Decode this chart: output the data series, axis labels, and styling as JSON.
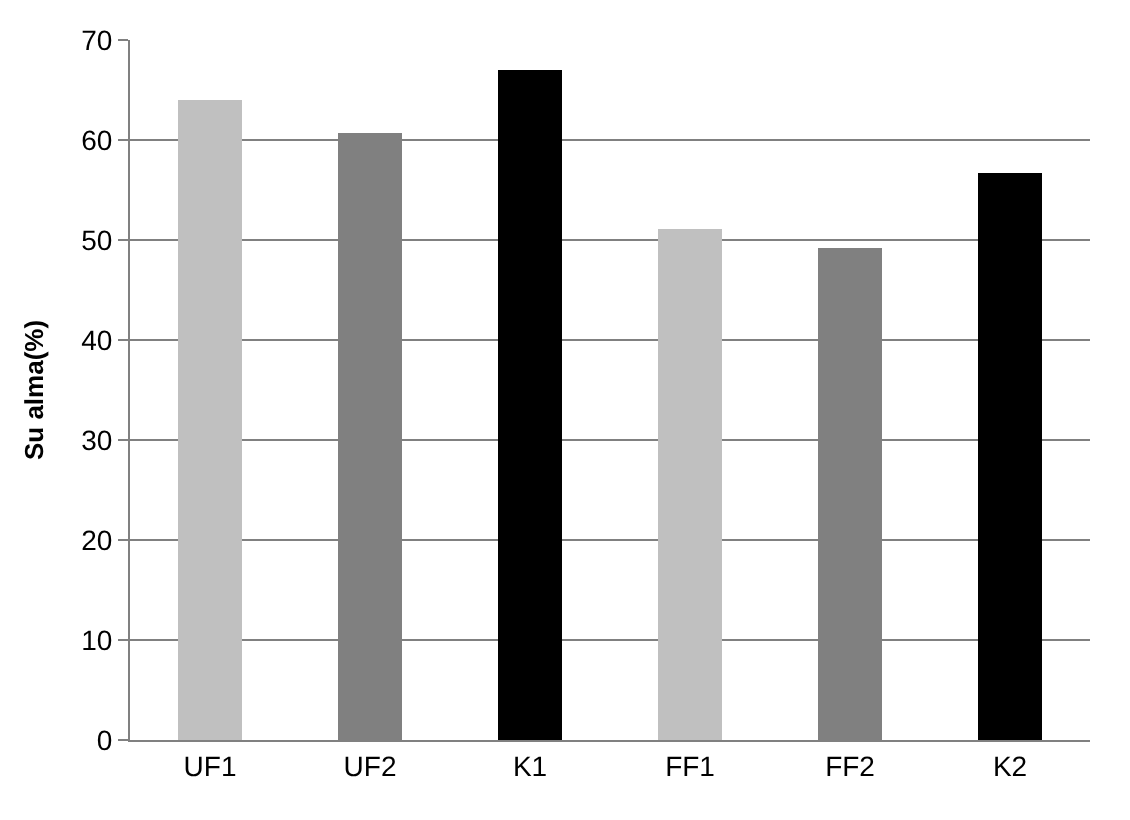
{
  "chart_data": {
    "type": "bar",
    "ylabel": "Su alma(%)",
    "categories": [
      "UF1",
      "UF2",
      "K1",
      "FF1",
      "FF2",
      "K2"
    ],
    "values": [
      64,
      60.7,
      67,
      51.1,
      49.2,
      56.7
    ],
    "colors": [
      "#c0c0c0",
      "#808080",
      "#000000",
      "#c0c0c0",
      "#808080",
      "#000000"
    ],
    "ylim": [
      0,
      70
    ],
    "yticks": [
      0,
      10,
      20,
      30,
      40,
      50,
      60,
      70
    ],
    "grid": "y"
  }
}
